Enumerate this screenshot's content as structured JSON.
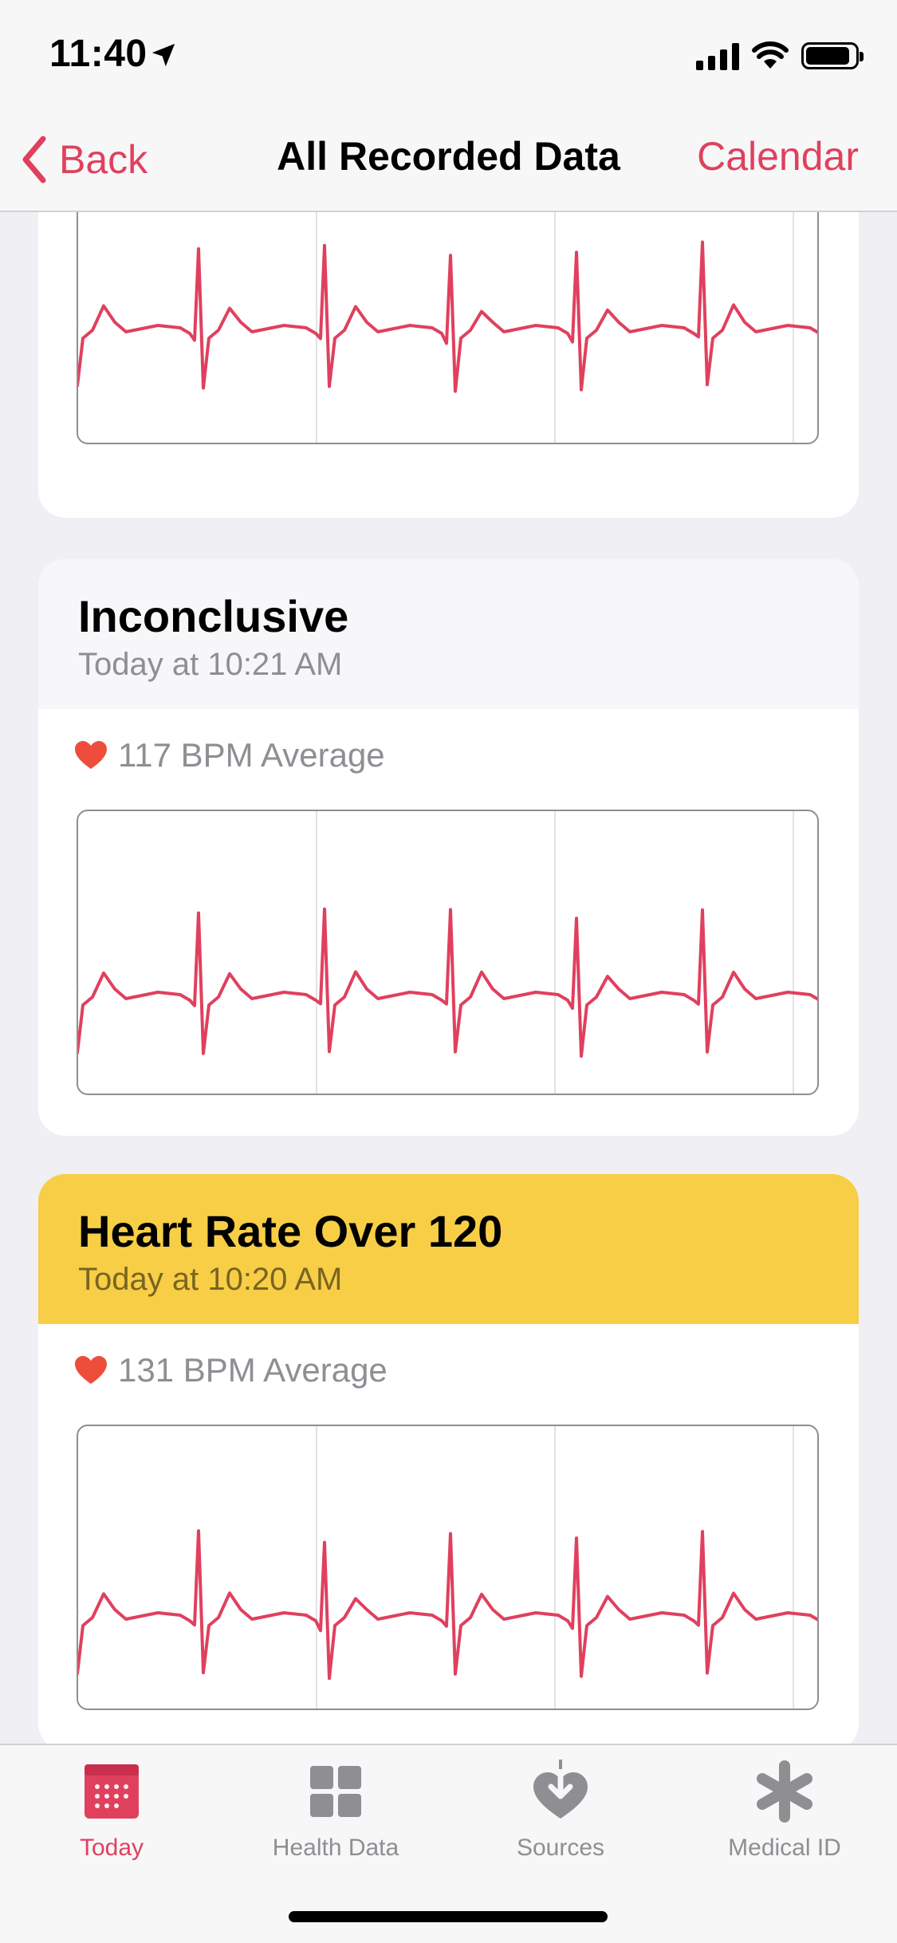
{
  "status_bar": {
    "time": "11:40"
  },
  "nav": {
    "back_label": "Back",
    "title": "All Recorded Data",
    "calendar_label": "Calendar"
  },
  "recordings": [
    {
      "classification": "",
      "time": "",
      "bpm_text": "",
      "header_style": "gray"
    },
    {
      "classification": "Inconclusive",
      "time": "Today at 10:21 AM",
      "bpm_text": "117 BPM Average",
      "header_style": "gray"
    },
    {
      "classification": "Heart Rate Over 120",
      "time": "Today at 10:20 AM",
      "bpm_text": "131 BPM Average",
      "header_style": "yellow"
    }
  ],
  "tabs": [
    {
      "label": "Today",
      "icon": "calendar-icon",
      "active": true
    },
    {
      "label": "Health Data",
      "icon": "grid-icon",
      "active": false
    },
    {
      "label": "Sources",
      "icon": "heart-download-icon",
      "active": false
    },
    {
      "label": "Medical ID",
      "icon": "asterisk-icon",
      "active": false
    }
  ],
  "colors": {
    "accent": "#e0405e",
    "ecg_trace": "#e0405e",
    "warning": "#f7ce46",
    "heart": "#ef4d3c"
  }
}
